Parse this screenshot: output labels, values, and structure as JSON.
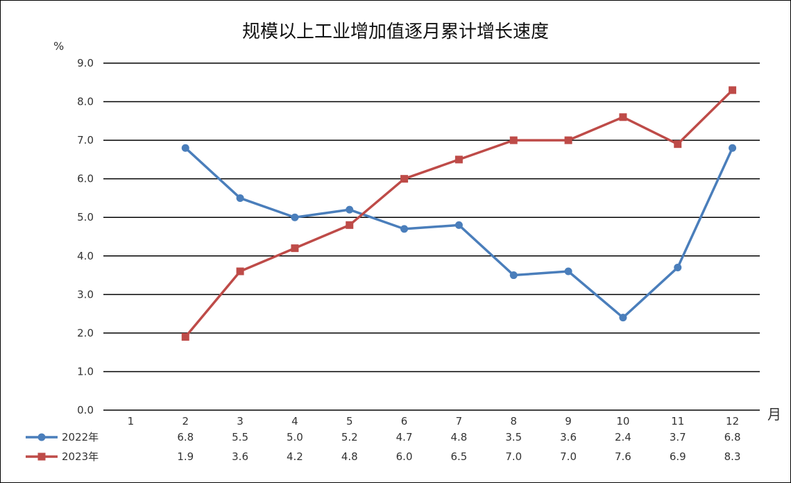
{
  "chart_data": {
    "type": "line",
    "title": "规模以上工业增加值逐月累计增长速度",
    "ylabel": "%",
    "xlabel": "月",
    "ylim": [
      0,
      9
    ],
    "yticks": [
      "0.0",
      "1.0",
      "2.0",
      "3.0",
      "4.0",
      "5.0",
      "6.0",
      "7.0",
      "8.0",
      "9.0"
    ],
    "categories": [
      "1",
      "2",
      "3",
      "4",
      "5",
      "6",
      "7",
      "8",
      "9",
      "10",
      "11",
      "12"
    ],
    "grid": true,
    "legend_position": "bottom-left data table",
    "series": [
      {
        "name": "2022年",
        "color": "#4a7ebb",
        "marker": "circle",
        "values": [
          null,
          6.8,
          5.5,
          5.0,
          5.2,
          4.7,
          4.8,
          3.5,
          3.6,
          2.4,
          3.7,
          6.8
        ],
        "labels": [
          "",
          "6.8",
          "5.5",
          "5.0",
          "5.2",
          "4.7",
          "4.8",
          "3.5",
          "3.6",
          "2.4",
          "3.7",
          "6.8"
        ]
      },
      {
        "name": "2023年",
        "color": "#be4b48",
        "marker": "square",
        "values": [
          null,
          1.9,
          3.6,
          4.2,
          4.8,
          6.0,
          6.5,
          7.0,
          7.0,
          7.6,
          6.9,
          8.3
        ],
        "labels": [
          "",
          "1.9",
          "3.6",
          "4.2",
          "4.8",
          "6.0",
          "6.5",
          "7.0",
          "7.0",
          "7.6",
          "6.9",
          "8.3"
        ]
      }
    ]
  }
}
